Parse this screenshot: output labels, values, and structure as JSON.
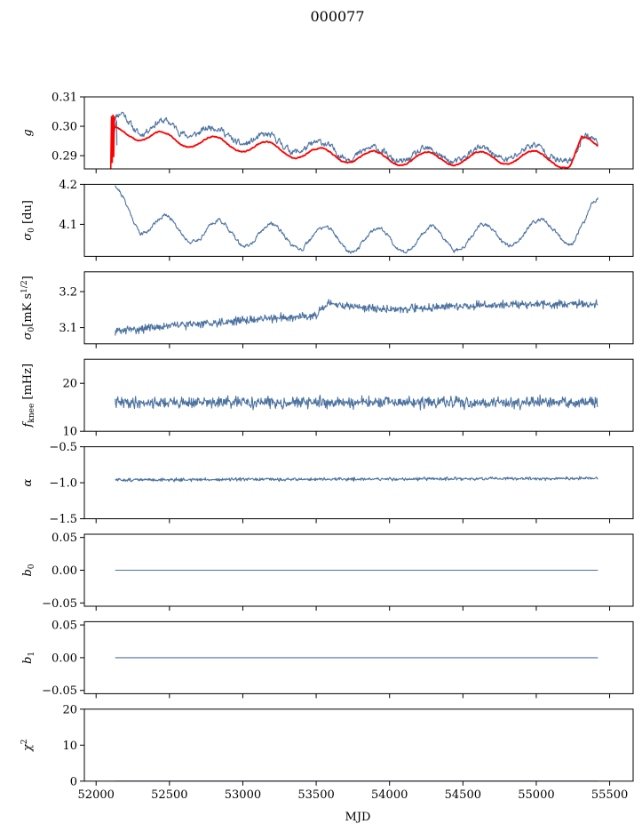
{
  "figure": {
    "title": "000077",
    "xlabel": "MJD"
  },
  "chart_data": [
    {
      "type": "line",
      "ylabel": "g",
      "ylabel_sub": "",
      "ylabel_sup": "",
      "xlim": [
        51920,
        55660
      ],
      "ylim": [
        0.2855,
        0.31
      ],
      "yticks": [
        0.29,
        0.3,
        0.31
      ],
      "ytick_labels": [
        "0.29",
        "0.30",
        "0.31"
      ],
      "show_xtick_labels": false,
      "series": [
        {
          "color": "#4c72a0",
          "shape": {
            "kind": "wave",
            "x0": 52120,
            "x1": 55420,
            "base": [
              [
                52120,
                0.302
              ],
              [
                52180,
                0.305
              ],
              [
                52300,
                0.2985
              ],
              [
                52500,
                0.3
              ],
              [
                53000,
                0.296
              ],
              [
                53500,
                0.2925
              ],
              [
                54000,
                0.29
              ],
              [
                54500,
                0.29
              ],
              [
                55000,
                0.2915
              ],
              [
                55150,
                0.2905
              ],
              [
                55260,
                0.289
              ],
              [
                55320,
                0.295
              ],
              [
                55420,
                0.294
              ]
            ],
            "amp": [
              [
                52120,
                0.001
              ],
              [
                52400,
                0.0022
              ],
              [
                55420,
                0.0022
              ]
            ],
            "period": 362,
            "phase": 0.35,
            "noise": 0.0009,
            "seed": 11
          },
          "stub": [
            [
              52120,
              0.297
            ],
            [
              52140,
              0.302
            ],
            [
              52142,
              0.2935
            ]
          ]
        },
        {
          "color": "#ff0000",
          "shape": {
            "kind": "wave",
            "x0": 52120,
            "x1": 55420,
            "base": [
              [
                52120,
                0.2995
              ],
              [
                52180,
                0.2985
              ],
              [
                52300,
                0.2965
              ],
              [
                53000,
                0.2935
              ],
              [
                53500,
                0.2905
              ],
              [
                54000,
                0.289
              ],
              [
                54500,
                0.289
              ],
              [
                55000,
                0.2895
              ],
              [
                55120,
                0.289
              ],
              [
                55230,
                0.287
              ],
              [
                55310,
                0.2945
              ],
              [
                55420,
                0.2925
              ]
            ],
            "amp": [
              [
                52120,
                0.0008
              ],
              [
                52400,
                0.0022
              ],
              [
                55420,
                0.0022
              ]
            ],
            "period": 362,
            "phase": 0.35,
            "noise": 0.00015,
            "seed": 12
          },
          "stub": [
            [
              52100,
              0.2855
            ],
            [
              52105,
              0.3035
            ],
            [
              52110,
              0.2875
            ],
            [
              52115,
              0.304
            ],
            [
              52120,
              0.2895
            ],
            [
              52125,
              0.3035
            ]
          ]
        }
      ]
    },
    {
      "type": "line",
      "ylabel": "σ",
      "ylabel_sub": "0",
      "ylabel_sup": "",
      "ylabel_rest": " [du]",
      "xlim": [
        51920,
        55660
      ],
      "ylim": [
        4.02,
        4.2
      ],
      "yticks": [
        4.1,
        4.2
      ],
      "ytick_labels": [
        "4.1",
        "4.2"
      ],
      "show_xtick_labels": false,
      "series": [
        {
          "color": "#4c72a0",
          "shape": {
            "kind": "wave",
            "x0": 52130,
            "x1": 55420,
            "base": [
              [
                52130,
                4.19
              ],
              [
                52200,
                4.155
              ],
              [
                52300,
                4.1
              ],
              [
                52500,
                4.09
              ],
              [
                53000,
                4.075
              ],
              [
                53500,
                4.065
              ],
              [
                54000,
                4.06
              ],
              [
                54500,
                4.065
              ],
              [
                55000,
                4.08
              ],
              [
                55150,
                4.1
              ],
              [
                55250,
                4.06
              ],
              [
                55330,
                4.1
              ],
              [
                55380,
                4.15
              ],
              [
                55420,
                4.165
              ]
            ],
            "amp": [
              [
                52130,
                0.01
              ],
              [
                52400,
                0.03
              ],
              [
                55200,
                0.03
              ],
              [
                55420,
                0.0
              ]
            ],
            "period": 362,
            "phase": 0.3,
            "noise": 0.004,
            "seed": 21
          }
        }
      ]
    },
    {
      "type": "line",
      "ylabel": "σ",
      "ylabel_sub": "0",
      "ylabel_sup": "1/2",
      "ylabel_rest": "[mK s",
      "xlim": [
        51920,
        55660
      ],
      "ylim": [
        3.055,
        3.255
      ],
      "yticks": [
        3.1,
        3.2
      ],
      "ytick_labels": [
        "3.1",
        "3.2"
      ],
      "show_xtick_labels": false,
      "series": [
        {
          "color": "#4c72a0",
          "shape": {
            "kind": "random",
            "x0": 52130,
            "x1": 55420,
            "base": [
              [
                52130,
                3.09
              ],
              [
                52500,
                3.105
              ],
              [
                53000,
                3.12
              ],
              [
                53500,
                3.135
              ],
              [
                53580,
                3.165
              ],
              [
                54000,
                3.15
              ],
              [
                54500,
                3.16
              ],
              [
                55000,
                3.165
              ],
              [
                55420,
                3.165
              ]
            ],
            "noise": 0.011,
            "seed": 31
          }
        }
      ]
    },
    {
      "type": "line",
      "ylabel": "f",
      "ylabel_sub": "knee",
      "ylabel_sup": "",
      "ylabel_rest": " [mHz]",
      "xlim": [
        51920,
        55660
      ],
      "ylim": [
        10,
        25
      ],
      "yticks": [
        10,
        20
      ],
      "ytick_labels": [
        "10",
        "20"
      ],
      "show_xtick_labels": false,
      "series": [
        {
          "color": "#4c72a0",
          "shape": {
            "kind": "random",
            "x0": 52130,
            "x1": 55420,
            "base": [
              [
                52130,
                16.0
              ],
              [
                55420,
                16.0
              ]
            ],
            "noise": 1.15,
            "seed": 41
          }
        }
      ]
    },
    {
      "type": "line",
      "ylabel": "α",
      "ylabel_sub": "",
      "ylabel_sup": "",
      "ylabel_rest": "",
      "xlim": [
        51920,
        55660
      ],
      "ylim": [
        -1.5,
        -0.5
      ],
      "yticks": [
        -1.5,
        -1.0,
        -0.5
      ],
      "ytick_labels": [
        "−1.5",
        "−1.0",
        "−0.5"
      ],
      "show_xtick_labels": false,
      "series": [
        {
          "color": "#4c72a0",
          "shape": {
            "kind": "random",
            "x0": 52130,
            "x1": 55420,
            "base": [
              [
                52130,
                -0.96
              ],
              [
                55420,
                -0.94
              ]
            ],
            "noise": 0.022,
            "seed": 51
          }
        }
      ]
    },
    {
      "type": "line",
      "ylabel": "b",
      "ylabel_sub": "0",
      "ylabel_sup": "",
      "ylabel_rest": "",
      "xlim": [
        51920,
        55660
      ],
      "ylim": [
        -0.055,
        0.055
      ],
      "yticks": [
        -0.05,
        0.0,
        0.05
      ],
      "ytick_labels": [
        "−0.05",
        "0.00",
        "0.05"
      ],
      "show_xtick_labels": false,
      "series": [
        {
          "color": "#4c72a0",
          "x": [
            52130,
            55420
          ],
          "y": [
            0.0,
            0.0
          ]
        }
      ]
    },
    {
      "type": "line",
      "ylabel": "b",
      "ylabel_sub": "1",
      "ylabel_sup": "",
      "ylabel_rest": "",
      "xlim": [
        51920,
        55660
      ],
      "ylim": [
        -0.055,
        0.055
      ],
      "yticks": [
        -0.05,
        0.0,
        0.05
      ],
      "ytick_labels": [
        "−0.05",
        "0.00",
        "0.05"
      ],
      "show_xtick_labels": false,
      "series": [
        {
          "color": "#4c72a0",
          "x": [
            52130,
            55420
          ],
          "y": [
            0.0,
            0.0
          ]
        }
      ]
    },
    {
      "type": "line",
      "ylabel": "χ",
      "ylabel_sub": "",
      "ylabel_sup": "2",
      "ylabel_rest": "",
      "xlim": [
        51920,
        55660
      ],
      "ylim": [
        0,
        20
      ],
      "yticks": [
        0,
        10,
        20
      ],
      "ytick_labels": [
        "0",
        "10",
        "20"
      ],
      "show_xtick_labels": true,
      "xticks": [
        52000,
        52500,
        53000,
        53500,
        54000,
        54500,
        55000,
        55500
      ],
      "xtick_labels": [
        "52000",
        "52500",
        "53000",
        "53500",
        "54000",
        "54500",
        "55000",
        "55500"
      ],
      "series": [
        {
          "color": "#4c72a0",
          "x": [
            52130,
            55420
          ],
          "y": [
            0.0,
            0.0
          ]
        }
      ]
    }
  ]
}
